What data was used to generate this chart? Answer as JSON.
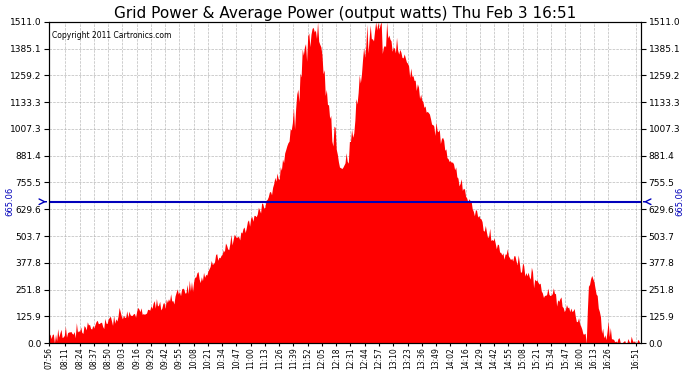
{
  "title": "Grid Power & Average Power (output watts) Thu Feb 3 16:51",
  "copyright": "Copyright 2011 Cartronics.com",
  "avg_line_value": 665.06,
  "y_max": 1511.0,
  "y_min": 0.0,
  "y_ticks": [
    0.0,
    125.9,
    251.8,
    377.8,
    503.7,
    629.6,
    755.5,
    881.4,
    1007.3,
    1133.3,
    1259.2,
    1385.1,
    1511.0
  ],
  "fill_color": "#FF0000",
  "line_color": "#0000BB",
  "background_color": "#FFFFFF",
  "grid_color": "#AAAAAA",
  "title_fontsize": 11,
  "x_labels": [
    "07:56",
    "08:11",
    "08:24",
    "08:37",
    "08:50",
    "09:03",
    "09:16",
    "09:29",
    "09:42",
    "09:55",
    "10:08",
    "10:21",
    "10:34",
    "10:47",
    "11:00",
    "11:13",
    "11:26",
    "11:39",
    "11:52",
    "12:05",
    "12:18",
    "12:31",
    "12:44",
    "12:57",
    "13:10",
    "13:23",
    "13:36",
    "13:49",
    "14:02",
    "14:16",
    "14:29",
    "14:42",
    "14:55",
    "15:08",
    "15:21",
    "15:34",
    "15:47",
    "16:00",
    "16:13",
    "16:26",
    "16:51"
  ],
  "keypoints": [
    [
      0,
      30
    ],
    [
      15,
      50
    ],
    [
      28,
      70
    ],
    [
      41,
      90
    ],
    [
      54,
      105
    ],
    [
      67,
      120
    ],
    [
      80,
      140
    ],
    [
      93,
      165
    ],
    [
      106,
      195
    ],
    [
      119,
      235
    ],
    [
      132,
      285
    ],
    [
      145,
      345
    ],
    [
      158,
      415
    ],
    [
      171,
      495
    ],
    [
      184,
      580
    ],
    [
      196,
      660
    ],
    [
      204,
      730
    ],
    [
      210,
      800
    ],
    [
      216,
      900
    ],
    [
      222,
      1050
    ],
    [
      228,
      1200
    ],
    [
      234,
      1380
    ],
    [
      238,
      1480
    ],
    [
      241,
      1511
    ],
    [
      244,
      1490
    ],
    [
      247,
      1440
    ],
    [
      250,
      1350
    ],
    [
      253,
      1200
    ],
    [
      256,
      1050
    ],
    [
      259,
      950
    ],
    [
      262,
      900
    ],
    [
      265,
      870
    ],
    [
      268,
      850
    ],
    [
      271,
      870
    ],
    [
      274,
      930
    ],
    [
      277,
      1020
    ],
    [
      280,
      1130
    ],
    [
      283,
      1230
    ],
    [
      286,
      1320
    ],
    [
      289,
      1390
    ],
    [
      292,
      1430
    ],
    [
      295,
      1450
    ],
    [
      298,
      1460
    ],
    [
      304,
      1450
    ],
    [
      310,
      1430
    ],
    [
      316,
      1400
    ],
    [
      322,
      1360
    ],
    [
      328,
      1300
    ],
    [
      334,
      1230
    ],
    [
      340,
      1150
    ],
    [
      348,
      1060
    ],
    [
      356,
      970
    ],
    [
      364,
      880
    ],
    [
      372,
      790
    ],
    [
      380,
      700
    ],
    [
      388,
      620
    ],
    [
      396,
      550
    ],
    [
      404,
      490
    ],
    [
      412,
      440
    ],
    [
      418,
      410
    ],
    [
      422,
      395
    ],
    [
      428,
      370
    ],
    [
      436,
      330
    ],
    [
      444,
      290
    ],
    [
      452,
      255
    ],
    [
      460,
      220
    ],
    [
      468,
      190
    ],
    [
      474,
      165
    ],
    [
      478,
      145
    ],
    [
      482,
      110
    ],
    [
      486,
      60
    ],
    [
      488,
      30
    ],
    [
      490,
      15
    ],
    [
      492,
      270
    ],
    [
      494,
      310
    ],
    [
      496,
      290
    ],
    [
      498,
      250
    ],
    [
      500,
      200
    ],
    [
      502,
      140
    ],
    [
      504,
      80
    ],
    [
      506,
      50
    ],
    [
      508,
      40
    ],
    [
      510,
      60
    ],
    [
      512,
      50
    ],
    [
      514,
      30
    ],
    [
      516,
      15
    ],
    [
      520,
      10
    ],
    [
      535,
      5
    ],
    [
      540,
      3
    ]
  ]
}
